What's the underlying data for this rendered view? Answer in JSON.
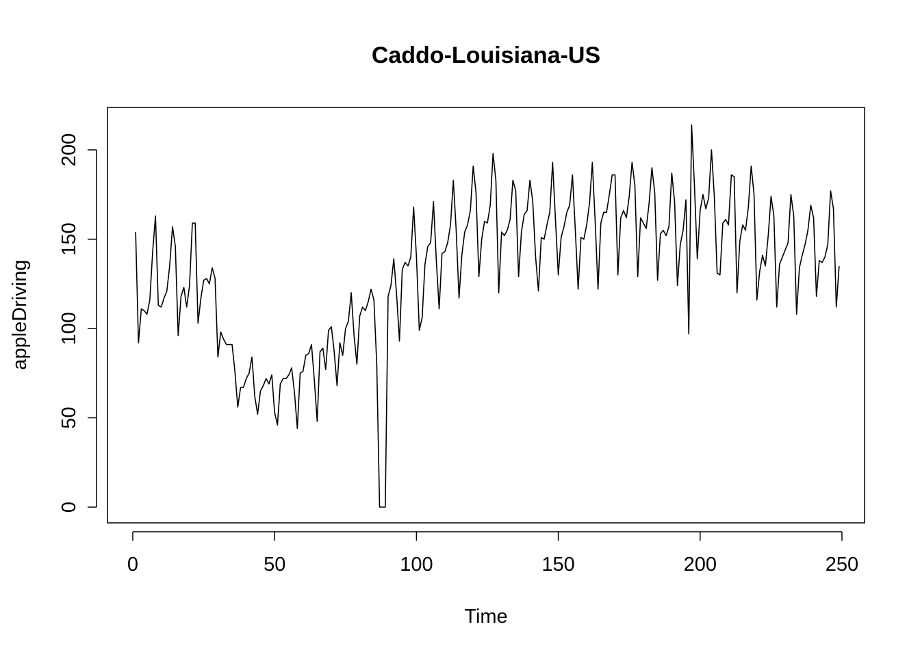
{
  "chart_data": {
    "type": "line",
    "title": "Caddo-Louisiana-US",
    "xlabel": "Time",
    "ylabel": "appleDriving",
    "xlim": [
      1,
      248
    ],
    "ylim": [
      0,
      215
    ],
    "x_ticks": [
      0,
      50,
      100,
      150,
      200,
      250
    ],
    "y_ticks": [
      0,
      50,
      100,
      150,
      200
    ],
    "grid": false,
    "legend": "none",
    "line_color": "#000000",
    "series": [
      {
        "x_start": 1,
        "values": [
          154,
          92,
          111,
          110,
          108,
          116,
          143,
          163,
          113,
          112,
          117,
          121,
          135,
          157,
          146,
          96,
          118,
          123,
          112,
          124,
          159,
          159,
          103,
          117,
          127,
          128,
          125,
          134,
          128,
          84,
          98,
          94,
          91,
          91,
          91,
          76,
          56,
          67,
          67,
          72,
          75,
          84,
          62,
          52,
          65,
          68,
          72,
          69,
          74,
          53,
          46,
          69,
          72,
          72,
          74,
          78,
          64,
          44,
          75,
          76,
          85,
          86,
          91,
          71,
          48,
          87,
          89,
          77,
          99,
          101,
          87,
          68,
          92,
          85,
          100,
          104,
          120,
          96,
          80,
          107,
          112,
          110,
          115,
          122,
          116,
          80,
          0,
          0,
          0,
          118,
          124,
          139,
          119,
          93,
          133,
          137,
          135,
          140,
          168,
          140,
          99,
          106,
          136,
          146,
          148,
          171,
          138,
          111,
          142,
          143,
          148,
          158,
          183,
          155,
          117,
          141,
          154,
          158,
          166,
          191,
          176,
          129,
          150,
          160,
          159,
          169,
          198,
          183,
          120,
          154,
          152,
          155,
          161,
          183,
          177,
          129,
          154,
          164,
          166,
          183,
          171,
          140,
          121,
          151,
          150,
          158,
          165,
          193,
          161,
          130,
          151,
          157,
          165,
          169,
          186,
          155,
          122,
          151,
          150,
          158,
          170,
          193,
          160,
          122,
          159,
          165,
          165,
          175,
          186,
          186,
          130,
          162,
          166,
          162,
          174,
          193,
          180,
          129,
          162,
          159,
          156,
          170,
          190,
          176,
          127,
          153,
          155,
          152,
          157,
          187,
          171,
          124,
          147,
          155,
          172,
          97,
          214,
          180,
          139,
          166,
          175,
          167,
          173,
          200,
          174,
          131,
          130,
          159,
          161,
          158,
          186,
          185,
          120,
          149,
          158,
          155,
          168,
          191,
          175,
          116,
          132,
          141,
          135,
          152,
          174,
          163,
          112,
          136,
          140,
          144,
          148,
          175,
          163,
          108,
          134,
          141,
          147,
          155,
          169,
          162,
          118,
          138,
          137,
          140,
          147,
          177,
          167,
          112,
          135
        ]
      }
    ]
  }
}
